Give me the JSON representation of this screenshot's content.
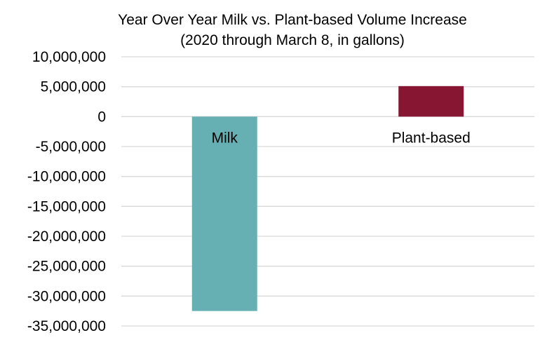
{
  "chart_data": {
    "type": "bar",
    "title": "Year Over Year Milk vs. Plant-based Volume Increase",
    "subtitle": "(2020 through March 8, in gallons)",
    "categories": [
      "Milk",
      "Plant-based"
    ],
    "values": [
      -32500000,
      5100000
    ],
    "colors": [
      "#66afb2",
      "#861631"
    ],
    "ylim": [
      -35000000,
      10000000
    ],
    "yticks": [
      "10,000,000",
      "5,000,000",
      "0",
      "-5,000,000",
      "-10,000,000",
      "-15,000,000",
      "-20,000,000",
      "-25,000,000",
      "-30,000,000",
      "-35,000,000"
    ],
    "grid": true,
    "legend": "none",
    "xlabel": "",
    "ylabel": ""
  }
}
